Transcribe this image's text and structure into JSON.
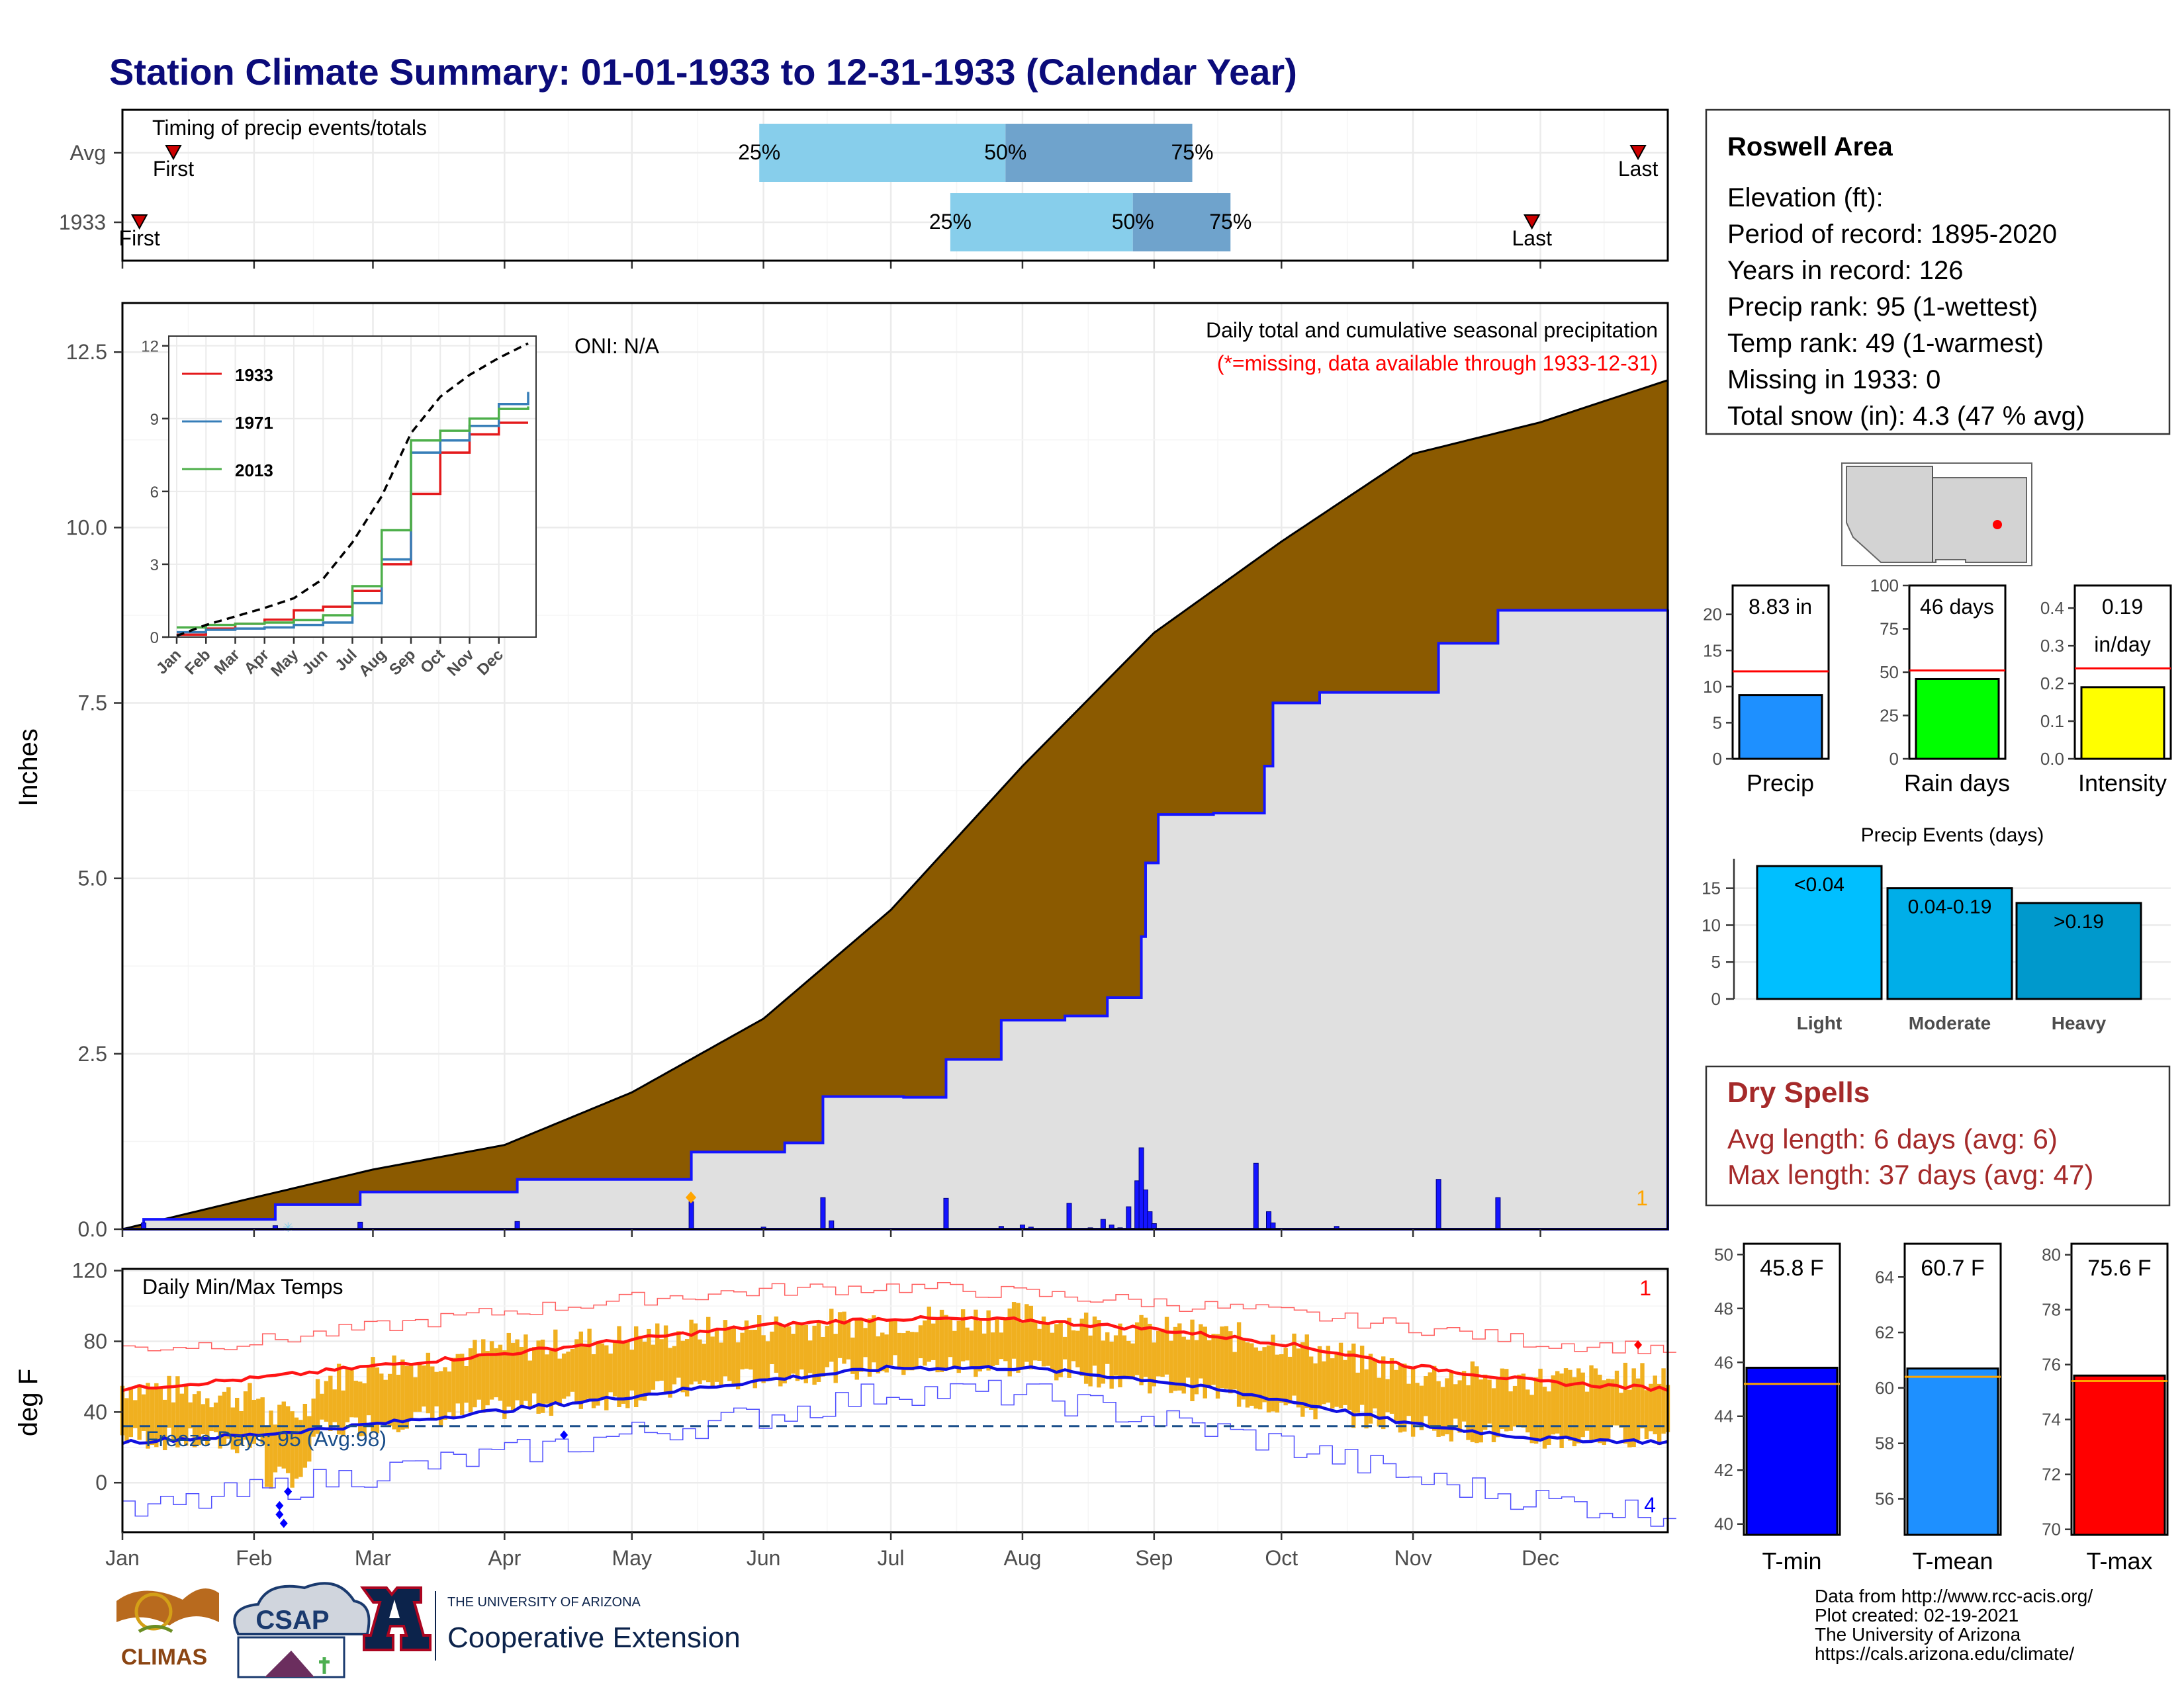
{
  "title": "Station Climate Summary: 01-01-1933 to 12-31-1933 (Calendar Year)",
  "colors": {
    "title": "#0b0b7a",
    "precip_cum_avg": "#8b5a00",
    "precip_cum_year": "#e0e0e0",
    "precip_bar": "#1515ff",
    "temp_bar": "#f0b020",
    "tmax_avg": "#ff1414",
    "tmin_avg": "#1010e0",
    "dry_spell": "#a52a2a",
    "missing": "#ff0000"
  },
  "timing": {
    "title": "Timing of precip events/totals",
    "rows": [
      {
        "name": "Avg",
        "first_label": "First",
        "last_label": "Last",
        "p25": "25%",
        "p50": "50%",
        "p75": "75%"
      },
      {
        "name": "1933",
        "first_label": "First",
        "last_label": "Last",
        "p25": "25%",
        "p50": "50%",
        "p75": "75%"
      }
    ]
  },
  "precip_panel": {
    "ylabel": "Inches",
    "caption": "Daily total and cumulative seasonal precipitation",
    "missing_note": "(*=missing, data available through 1933-12-31)",
    "oni": "ONI: N/A",
    "count_label": "1",
    "y_ticks": [
      "0.0",
      "2.5",
      "5.0",
      "7.5",
      "10.0",
      "12.5"
    ]
  },
  "inset": {
    "legend": [
      "1933",
      "1971",
      "2013"
    ],
    "y_ticks": [
      "0",
      "3",
      "6",
      "9",
      "12"
    ],
    "x_ticks": [
      "Jan",
      "Feb",
      "Mar",
      "Apr",
      "May",
      "Jun",
      "Jul",
      "Aug",
      "Sep",
      "Oct",
      "Nov",
      "Dec"
    ]
  },
  "temp_panel": {
    "ylabel": "deg F",
    "title": "Daily Min/Max Temps",
    "freeze": "Freeze Days: 95 (Avg:98)",
    "count_max": "1",
    "count_min": "4",
    "y_ticks": [
      "0",
      "40",
      "80",
      "120"
    ]
  },
  "months": [
    "Jan",
    "Feb",
    "Mar",
    "Apr",
    "May",
    "Jun",
    "Jul",
    "Aug",
    "Sep",
    "Oct",
    "Nov",
    "Dec"
  ],
  "station": {
    "name": "Roswell Area",
    "lines": [
      "Elevation (ft):",
      "Period of record: 1895-2020",
      "Years in record: 126",
      "Precip rank: 95 (1-wettest)",
      "Temp rank: 49 (1-warmest)",
      "Missing in 1933: 0",
      "Total snow (in): 4.3 (47 % avg)"
    ]
  },
  "bar_precip": {
    "value_label": "8.83 in",
    "label": "Precip",
    "ticks": [
      "0",
      "5",
      "10",
      "15",
      "20"
    ]
  },
  "bar_raindays": {
    "value_label": "46 days",
    "label": "Rain days",
    "ticks": [
      "0",
      "25",
      "50",
      "75",
      "100"
    ]
  },
  "bar_intensity": {
    "value_label1": "0.19",
    "value_label2": "in/day",
    "label": "Intensity",
    "ticks": [
      "0.0",
      "0.1",
      "0.2",
      "0.3",
      "0.4"
    ]
  },
  "events": {
    "title": "Precip Events (days)",
    "ticks": [
      "0",
      "5",
      "10",
      "15"
    ],
    "bars": [
      {
        "cat": "Light",
        "label": "<0.04"
      },
      {
        "cat": "Moderate",
        "label": "0.04-0.19"
      },
      {
        "cat": "Heavy",
        "label": ">0.19"
      }
    ]
  },
  "dry_spells": {
    "title": "Dry Spells",
    "avg": "Avg length: 6 days (avg: 6)",
    "max": "Max length: 37 days (avg: 47)"
  },
  "temp_bars": [
    {
      "label": "T-min",
      "value_label": "45.8 F",
      "ticks": [
        "40",
        "42",
        "44",
        "46",
        "48",
        "50"
      ]
    },
    {
      "label": "T-mean",
      "value_label": "60.7 F",
      "ticks": [
        "56",
        "58",
        "60",
        "62",
        "64"
      ]
    },
    {
      "label": "T-max",
      "value_label": "75.6 F",
      "ticks": [
        "70",
        "72",
        "74",
        "76",
        "78",
        "80"
      ]
    }
  ],
  "footer": {
    "lines": [
      "Data from http://www.rcc-acis.org/",
      "Plot created: 02-19-2021",
      "The University of Arizona",
      "https://cals.arizona.edu/climate/"
    ],
    "climas": "CLIMAS",
    "csap": "CSAP",
    "ua_small": "THE UNIVERSITY OF ARIZONA",
    "ua_big": "Cooperative Extension"
  },
  "chart_data": [
    {
      "type": "bar",
      "title": "Timing of precip events/totals",
      "categories": [
        "Avg",
        "1933"
      ],
      "series": [
        {
          "name": "First",
          "values": [
            "Jan 13",
            "Jan 5"
          ]
        },
        {
          "name": "25%",
          "values": [
            "May 31",
            "Jul 15"
          ]
        },
        {
          "name": "50%",
          "values": [
            "Jul 28",
            "Aug 27"
          ]
        },
        {
          "name": "75%",
          "values": [
            "Sep 10",
            "Sep 19"
          ]
        },
        {
          "name": "Last",
          "values": [
            "Dec 24",
            "Nov 29"
          ]
        }
      ]
    },
    {
      "type": "area",
      "title": "Daily total and cumulative seasonal precipitation",
      "ylabel": "Inches",
      "ylim": [
        0,
        13.2
      ],
      "x_unit": "day of year",
      "series": [
        {
          "name": "avg cumulative",
          "x": [
            1,
            32,
            60,
            91,
            121,
            152,
            182,
            213,
            244,
            274,
            305,
            335,
            365
          ],
          "values": [
            0,
            0.45,
            0.85,
            1.2,
            1.95,
            3.0,
            4.55,
            6.6,
            8.5,
            9.8,
            11.05,
            11.5,
            12.1
          ]
        },
        {
          "name": "1933 cumulative",
          "x": [
            1,
            6,
            37,
            57,
            94,
            135,
            157,
            166,
            185,
            195,
            208,
            223,
            233,
            241,
            242,
            245,
            258,
            270,
            272,
            283,
            311,
            325,
            365
          ],
          "values": [
            0,
            0.14,
            0.35,
            0.53,
            0.71,
            1.1,
            1.23,
            1.89,
            1.88,
            2.42,
            2.98,
            3.04,
            3.3,
            4.17,
            5.22,
            5.91,
            5.93,
            6.6,
            7.5,
            7.65,
            8.35,
            8.82,
            8.83
          ]
        },
        {
          "name": "daily precip",
          "x": [
            6,
            37,
            57,
            94,
            135,
            152,
            166,
            168,
            195,
            208,
            213,
            215,
            224,
            229,
            232,
            234,
            236,
            238,
            240,
            241,
            242,
            243,
            244,
            268,
            271,
            272,
            287,
            311,
            325
          ],
          "values": [
            0.09,
            0.05,
            0.1,
            0.11,
            0.39,
            0.03,
            0.45,
            0.12,
            0.44,
            0.04,
            0.06,
            0.03,
            0.37,
            0.02,
            0.14,
            0.06,
            0.02,
            0.32,
            0.69,
            1.16,
            0.56,
            0.25,
            0.08,
            0.94,
            0.25,
            0.09,
            0.04,
            0.71,
            0.45
          ]
        }
      ]
    },
    {
      "type": "line",
      "title": "",
      "ylim": [
        0,
        12
      ],
      "x": [
        "Jan",
        "Feb",
        "Mar",
        "Apr",
        "May",
        "Jun",
        "Jul",
        "Aug",
        "Sep",
        "Oct",
        "Nov",
        "Dec",
        "Dec31"
      ],
      "series": [
        {
          "name": "1933",
          "values": [
            0.1,
            0.35,
            0.55,
            0.72,
            1.1,
            1.25,
            1.9,
            3.0,
            5.9,
            7.6,
            8.35,
            8.83,
            8.83
          ]
        },
        {
          "name": "1971",
          "values": [
            0.2,
            0.3,
            0.35,
            0.4,
            0.5,
            0.6,
            1.4,
            3.2,
            7.6,
            8.1,
            8.7,
            9.6,
            10.1
          ]
        },
        {
          "name": "2013",
          "values": [
            0.4,
            0.5,
            0.55,
            0.6,
            0.7,
            0.9,
            2.1,
            4.4,
            8.1,
            8.5,
            9.0,
            9.4,
            9.5
          ]
        },
        {
          "name": "avg",
          "values": [
            0.05,
            0.5,
            0.85,
            1.2,
            1.6,
            2.4,
            3.9,
            5.8,
            8.4,
            9.9,
            10.8,
            11.5,
            12.1
          ]
        }
      ]
    },
    {
      "type": "line",
      "title": "Daily Min/Max Temps",
      "ylabel": "deg F",
      "ylim": [
        -28,
        121
      ],
      "x": [
        "Jan",
        "Feb",
        "Mar",
        "Apr",
        "May",
        "Jun",
        "Jul",
        "Aug",
        "Sep",
        "Oct",
        "Nov",
        "Dec",
        "Dec31"
      ],
      "series": [
        {
          "name": "avg max",
          "values": [
            53,
            59,
            66,
            73,
            81,
            89,
            93,
            92,
            87,
            79,
            66,
            57,
            53
          ]
        },
        {
          "name": "avg min",
          "values": [
            23,
            27,
            33,
            41,
            49,
            58,
            65,
            65,
            58,
            47,
            33,
            25,
            23
          ]
        },
        {
          "name": "record max",
          "values": [
            76,
            80,
            88,
            97,
            104,
            109,
            111,
            107,
            102,
            96,
            88,
            79,
            76
          ]
        },
        {
          "name": "record min",
          "values": [
            -18,
            -5,
            6,
            16,
            28,
            38,
            52,
            50,
            36,
            22,
            2,
            -10,
            -18
          ]
        },
        {
          "name": "1933 max",
          "values": [
            55,
            48,
            65,
            76,
            82,
            88,
            92,
            94,
            86,
            80,
            62,
            58,
            60
          ]
        },
        {
          "name": "1933 min",
          "values": [
            26,
            22,
            34,
            42,
            49,
            60,
            66,
            66,
            57,
            44,
            33,
            24,
            28
          ]
        }
      ]
    },
    {
      "type": "bar",
      "title": "",
      "categories": [
        "Precip"
      ],
      "values": [
        8.83
      ],
      "ylim": [
        0,
        24
      ],
      "avg": 12.1
    },
    {
      "type": "bar",
      "title": "",
      "categories": [
        "Rain days"
      ],
      "values": [
        46
      ],
      "ylim": [
        0,
        100
      ],
      "avg": 51
    },
    {
      "type": "bar",
      "title": "",
      "categories": [
        "Intensity"
      ],
      "values": [
        0.19
      ],
      "ylim": [
        0,
        0.46
      ],
      "avg": 0.24
    },
    {
      "type": "bar",
      "title": "Precip Events (days)",
      "categories": [
        "Light",
        "Moderate",
        "Heavy"
      ],
      "values": [
        18,
        15,
        13
      ],
      "ylim": [
        0,
        19
      ]
    },
    {
      "type": "bar",
      "title": "",
      "categories": [
        "T-min"
      ],
      "values": [
        45.8
      ],
      "ylim": [
        39.6,
        50.4
      ],
      "avg": 45.2
    },
    {
      "type": "bar",
      "title": "",
      "categories": [
        "T-mean"
      ],
      "values": [
        60.7
      ],
      "ylim": [
        54.7,
        65.2
      ],
      "avg": 60.4
    },
    {
      "type": "bar",
      "title": "",
      "categories": [
        "T-max"
      ],
      "values": [
        75.6
      ],
      "ylim": [
        69.8,
        80.4
      ],
      "avg": 75.4
    }
  ]
}
